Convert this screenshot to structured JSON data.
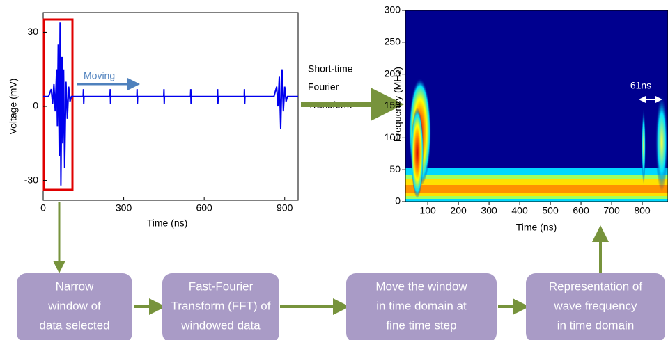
{
  "voltage_plot": {
    "xlabel": "Time (ns)",
    "ylabel": "Voltage (mV)",
    "xlim": [
      0,
      950
    ],
    "ylim": [
      -38,
      38
    ],
    "xticks": [
      0,
      300,
      600,
      900
    ],
    "yticks": [
      -30,
      0,
      30
    ],
    "color": "#0000ee",
    "annotation": "Moving",
    "x": [
      0,
      20,
      30,
      35,
      40,
      45,
      50,
      53,
      56,
      60,
      63,
      66,
      70,
      73,
      76,
      80,
      85,
      90,
      95,
      100,
      105,
      149,
      150,
      151,
      152,
      249,
      250,
      251,
      252,
      349,
      350,
      351,
      352,
      449,
      450,
      451,
      452,
      549,
      550,
      551,
      552,
      649,
      650,
      651,
      652,
      749,
      750,
      751,
      752,
      860,
      870,
      875,
      880,
      885,
      890,
      895,
      900,
      905,
      910,
      950
    ],
    "values": [
      4,
      4,
      7,
      1,
      9,
      -2,
      15,
      -8,
      25,
      -20,
      34,
      -32,
      20,
      -15,
      15,
      -25,
      10,
      -5,
      8,
      2,
      4,
      4,
      7,
      1,
      4,
      4,
      7,
      1,
      4,
      4,
      7,
      1,
      4,
      4,
      7,
      1,
      4,
      4,
      7,
      1,
      4,
      4,
      7,
      1,
      4,
      4,
      7,
      1,
      4,
      4,
      8,
      0,
      12,
      -9,
      15,
      -2,
      8,
      2,
      4,
      4
    ]
  },
  "transform_label": [
    "Short-time",
    "Fourier",
    "Transform"
  ],
  "spectrogram": {
    "xlabel": "Time (ns)",
    "ylabel": "Frequency (MHz)",
    "xlim": [
      27,
      884
    ],
    "ylim": [
      0,
      300
    ],
    "xticks": [
      100,
      200,
      300,
      400,
      500,
      600,
      700,
      800
    ],
    "yticks": [
      0,
      50,
      100,
      150,
      200,
      250,
      300
    ],
    "annotation": "61ns"
  },
  "steps": [
    {
      "lines": [
        "Narrow",
        "window of",
        "data selected"
      ]
    },
    {
      "lines": [
        "Fast-Fourier",
        "Transform (FFT) of",
        "windowed data"
      ]
    },
    {
      "lines": [
        "Move the window",
        "in time domain at",
        "fine time step"
      ]
    },
    {
      "lines": [
        "Representation  of",
        "wave frequency",
        "in time domain"
      ]
    }
  ]
}
